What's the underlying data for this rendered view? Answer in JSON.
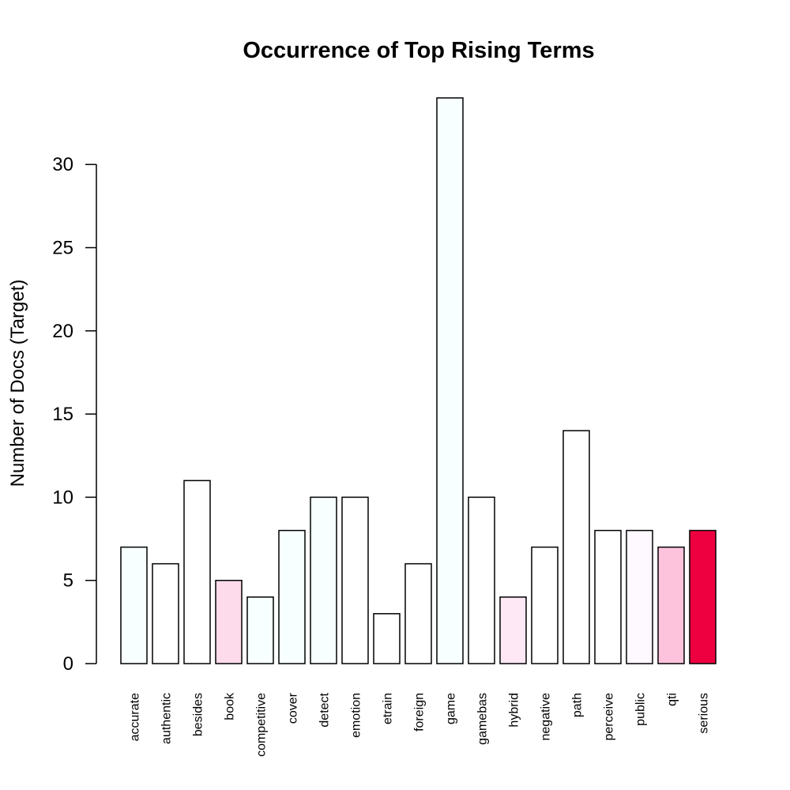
{
  "chart_data": {
    "type": "bar",
    "title": "Occurrence of Top Rising Terms",
    "xlabel": "",
    "ylabel": "Number of Docs (Target)",
    "ylim": [
      0,
      34
    ],
    "yticks": [
      0,
      5,
      10,
      15,
      20,
      25,
      30
    ],
    "categories": [
      "accurate",
      "authentic",
      "besides",
      "book",
      "competitive",
      "cover",
      "detect",
      "emotion",
      "etrain",
      "foreign",
      "game",
      "gamebas",
      "hybrid",
      "negative",
      "path",
      "perceive",
      "public",
      "qti",
      "serious"
    ],
    "values": [
      7,
      6,
      11,
      5,
      4,
      8,
      10,
      10,
      3,
      6,
      34,
      10,
      4,
      7,
      14,
      8,
      8,
      7,
      8
    ],
    "colors": [
      "#f7ffff",
      "#ffffff",
      "#ffffff",
      "#fddbea",
      "#f7ffff",
      "#f7ffff",
      "#f7ffff",
      "#ffffff",
      "#ffffff",
      "#ffffff",
      "#f7ffff",
      "#ffffff",
      "#ffe8f6",
      "#ffffff",
      "#ffffff",
      "#ffffff",
      "#fdf9ff",
      "#fdc3dc",
      "#ee0040"
    ],
    "grid": false
  }
}
